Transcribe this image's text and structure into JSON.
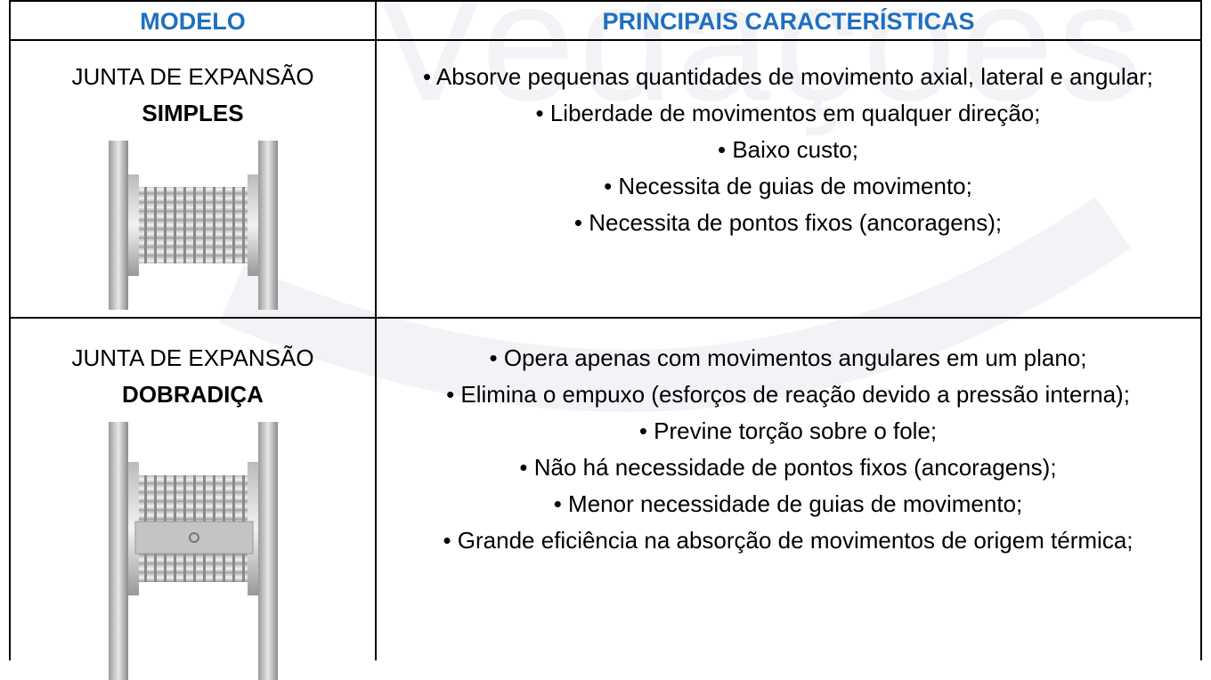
{
  "watermark": "Vedações",
  "table": {
    "header": [
      "MODELO",
      "PRINCIPAIS CARACTERÍSTICAS"
    ],
    "rows": [
      {
        "model": [
          "JUNTA DE EXPANSÃO",
          "SIMPLES"
        ],
        "features": [
          "• Absorve pequenas quantidades de movimento axial, lateral e angular;",
          "• Liberdade de movimentos em qualquer direção;",
          "• Baixo custo;",
          "• Necessita de guias de movimento;",
          "• Necessita de pontos fixos (ancoragens);"
        ]
      },
      {
        "model": [
          "JUNTA DE EXPANSÃO",
          "DOBRADIÇA"
        ],
        "features": [
          "• Opera apenas com movimentos angulares em um plano;",
          "• Elimina o empuxo (esforços de reação devido a pressão interna);",
          "• Previne torção sobre o fole;",
          "• Não há necessidade de pontos fixos (ancoragens);",
          "• Menor necessidade de guias de movimento;",
          "• Grande eficiência na absorção de movimentos de origem térmica;"
        ]
      }
    ]
  }
}
